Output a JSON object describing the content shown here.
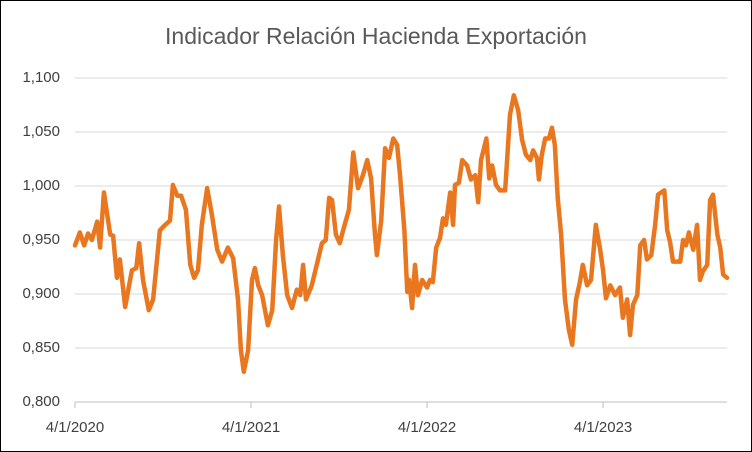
{
  "chart_data": {
    "type": "line",
    "title": "Indicador  Relación Hacienda Exportación",
    "series": [
      {
        "name": "Indicador",
        "color": "#e8771f",
        "values": [
          0.945,
          0.957,
          0.945,
          0.956,
          0.95,
          0.967,
          0.943,
          0.994,
          0.955,
          0.954,
          0.915,
          0.932,
          0.888,
          0.922,
          0.924,
          0.947,
          0.913,
          0.885,
          0.895,
          0.959,
          0.964,
          0.968,
          1.001,
          0.991,
          0.991,
          0.978,
          0.927,
          0.915,
          0.922,
          0.964,
          0.998,
          0.973,
          0.941,
          0.93,
          0.943,
          0.933,
          0.895,
          0.848,
          0.828,
          0.848,
          0.913,
          0.924,
          0.908,
          0.899,
          0.871,
          0.885,
          0.95,
          0.981,
          0.936,
          0.899,
          0.887,
          0.904,
          0.899,
          0.927,
          0.895,
          0.908,
          0.932,
          0.947,
          0.95,
          0.989,
          0.987,
          0.955,
          0.947,
          0.959,
          0.978,
          1.031,
          0.998,
          1.01,
          1.024,
          1.007,
          0.955,
          0.936,
          0.968,
          1.035,
          1.026,
          1.044,
          1.038,
          1.01,
          0.959,
          0.902,
          0.913,
          0.887,
          0.927,
          0.899,
          0.913,
          0.906,
          0.913,
          0.911,
          0.943,
          0.952,
          0.97,
          0.964,
          0.994,
          0.964,
          1.001,
          1.003,
          1.024,
          1.019,
          1.006,
          1.01,
          0.985,
          1.024,
          1.044,
          1.007,
          1.019,
          1.001,
          0.996,
          0.996,
          1.066,
          1.084,
          1.07,
          1.043,
          1.029,
          1.024,
          1.033,
          1.026,
          1.006,
          1.029,
          1.044,
          1.044,
          1.054,
          1.038,
          0.989,
          0.955,
          0.895,
          0.867,
          0.853,
          0.895,
          0.911,
          0.927,
          0.908,
          0.913,
          0.964,
          0.941,
          0.922,
          0.896,
          0.908,
          0.899,
          0.906,
          0.878,
          0.895,
          0.862,
          0.89,
          0.899,
          0.945,
          0.95,
          0.932,
          0.936,
          0.964,
          0.992,
          0.996,
          0.959,
          0.948,
          0.93,
          0.93,
          0.95,
          0.945,
          0.957,
          0.941,
          0.964,
          0.913,
          0.921,
          0.927,
          0.987,
          0.992,
          0.955,
          0.943,
          0.918,
          0.915
        ]
      }
    ],
    "x": [
      "4/1/2020",
      "4/11/2020",
      "4/20/2020",
      "4/28/2020",
      "5/6/2020",
      "5/17/2020",
      "5/23/2020",
      "5/31/2020",
      "6/13/2020",
      "6/19/2020",
      "6/27/2020",
      "7/3/2020",
      "7/14/2020",
      "7/28/2020",
      "8/6/2020",
      "8/12/2020",
      "8/20/2020",
      "9/1/2020",
      "9/10/2020",
      "9/24/2020",
      "10/5/2020",
      "10/15/2020",
      "10/21/2020",
      "10/30/2020",
      "11/7/2020",
      "11/17/2020",
      "11/26/2020",
      "12/4/2020",
      "12/12/2020",
      "12/20/2020",
      "12/31/2020",
      "1/10/2021",
      "1/21/2021",
      "1/31/2021",
      "2/12/2021",
      "2/23/2021",
      "3/5/2021",
      "3/11/2021",
      "3/17/2021",
      "3/26/2021",
      "4/3/2021",
      "4/9/2021",
      "4/16/2021",
      "4/24/2021",
      "5/6/2021",
      "5/15/2021",
      "5/23/2021",
      "5/29/2021",
      "6/6/2021",
      "6/15/2021",
      "6/25/2021",
      "7/5/2021",
      "7/12/2021",
      "7/18/2021",
      "7/24/2021",
      "8/5/2021",
      "8/18/2021",
      "8/26/2021",
      "9/3/2021",
      "9/10/2021",
      "9/16/2021",
      "9/24/2021",
      "10/2/2021",
      "10/9/2021",
      "10/21/2021",
      "10/30/2021",
      "11/9/2021",
      "11/19/2021",
      "11/28/2021",
      "12/6/2021",
      "12/14/2021",
      "12/18/2021",
      "12/27/2021",
      "1/4/2022",
      "1/12/2022",
      "1/21/2022",
      "1/29/2022",
      "2/4/2022",
      "2/13/2022",
      "2/19/2022",
      "2/23/2022",
      "3/1/2022",
      "3/7/2022",
      "3/13/2022",
      "3/22/2022",
      "4/1/2022",
      "4/7/2022",
      "4/13/2022",
      "4/20/2022",
      "4/28/2022",
      "5/4/2022",
      "5/10/2022",
      "5/19/2022",
      "5/25/2022",
      "5/29/2022",
      "6/6/2022",
      "6/13/2022",
      "6/23/2022",
      "7/1/2022",
      "7/10/2022",
      "7/16/2022",
      "7/22/2022",
      "8/2/2022",
      "8/8/2022",
      "8/14/2022",
      "8/22/2022",
      "8/30/2022",
      "9/10/2022",
      "9/20/2022",
      "9/28/2022",
      "10/7/2022",
      "10/15/2022",
      "10/23/2022",
      "11/1/2022",
      "11/7/2022",
      "11/15/2022",
      "11/19/2022",
      "11/25/2022",
      "12/2/2022",
      "12/10/2022",
      "12/16/2022",
      "12/22/2022",
      "12/28/2022",
      "1/4/2023",
      "1/12/2023",
      "1/20/2023",
      "1/27/2023",
      "2/4/2023",
      "2/12/2023",
      "2/18/2023",
      "2/27/2023",
      "3/7/2023",
      "3/17/2023",
      "3/26/2023",
      "4/1/2023",
      "4/7/2023",
      "4/16/2023",
      "4/26/2023",
      "5/6/2023",
      "5/12/2023",
      "5/21/2023",
      "5/27/2023",
      "6/2/2023",
      "6/11/2023",
      "6/17/2023",
      "6/25/2023",
      "7/1/2023",
      "7/10/2023",
      "7/18/2023",
      "7/24/2023",
      "8/6/2023",
      "8/12/2023",
      "8/18/2023",
      "8/24/2023",
      "9/8/2023",
      "9/14/2023",
      "9/20/2023",
      "9/26/2023",
      "10/5/2023",
      "10/13/2023",
      "10/19/2023",
      "10/25/2023",
      "11/3/2023",
      "11/9/2023",
      "11/15/2023",
      "11/24/2023",
      "11/30/2023",
      "12/6/2023",
      "12/14/2023"
    ],
    "xlim": [
      "4/1/2020",
      "12/14/2023"
    ],
    "xticks": [
      "4/1/2020",
      "4/1/2021",
      "4/1/2022",
      "4/1/2023"
    ],
    "ylim": [
      0.8,
      1.1
    ],
    "yticks": [
      {
        "value": 0.8,
        "label": "0,800"
      },
      {
        "value": 0.85,
        "label": "0,850"
      },
      {
        "value": 0.9,
        "label": "0,900"
      },
      {
        "value": 0.95,
        "label": "0,950"
      },
      {
        "value": 1.0,
        "label": "1,000"
      },
      {
        "value": 1.05,
        "label": "1,050"
      },
      {
        "value": 1.1,
        "label": "1,100"
      }
    ],
    "grid": true
  }
}
